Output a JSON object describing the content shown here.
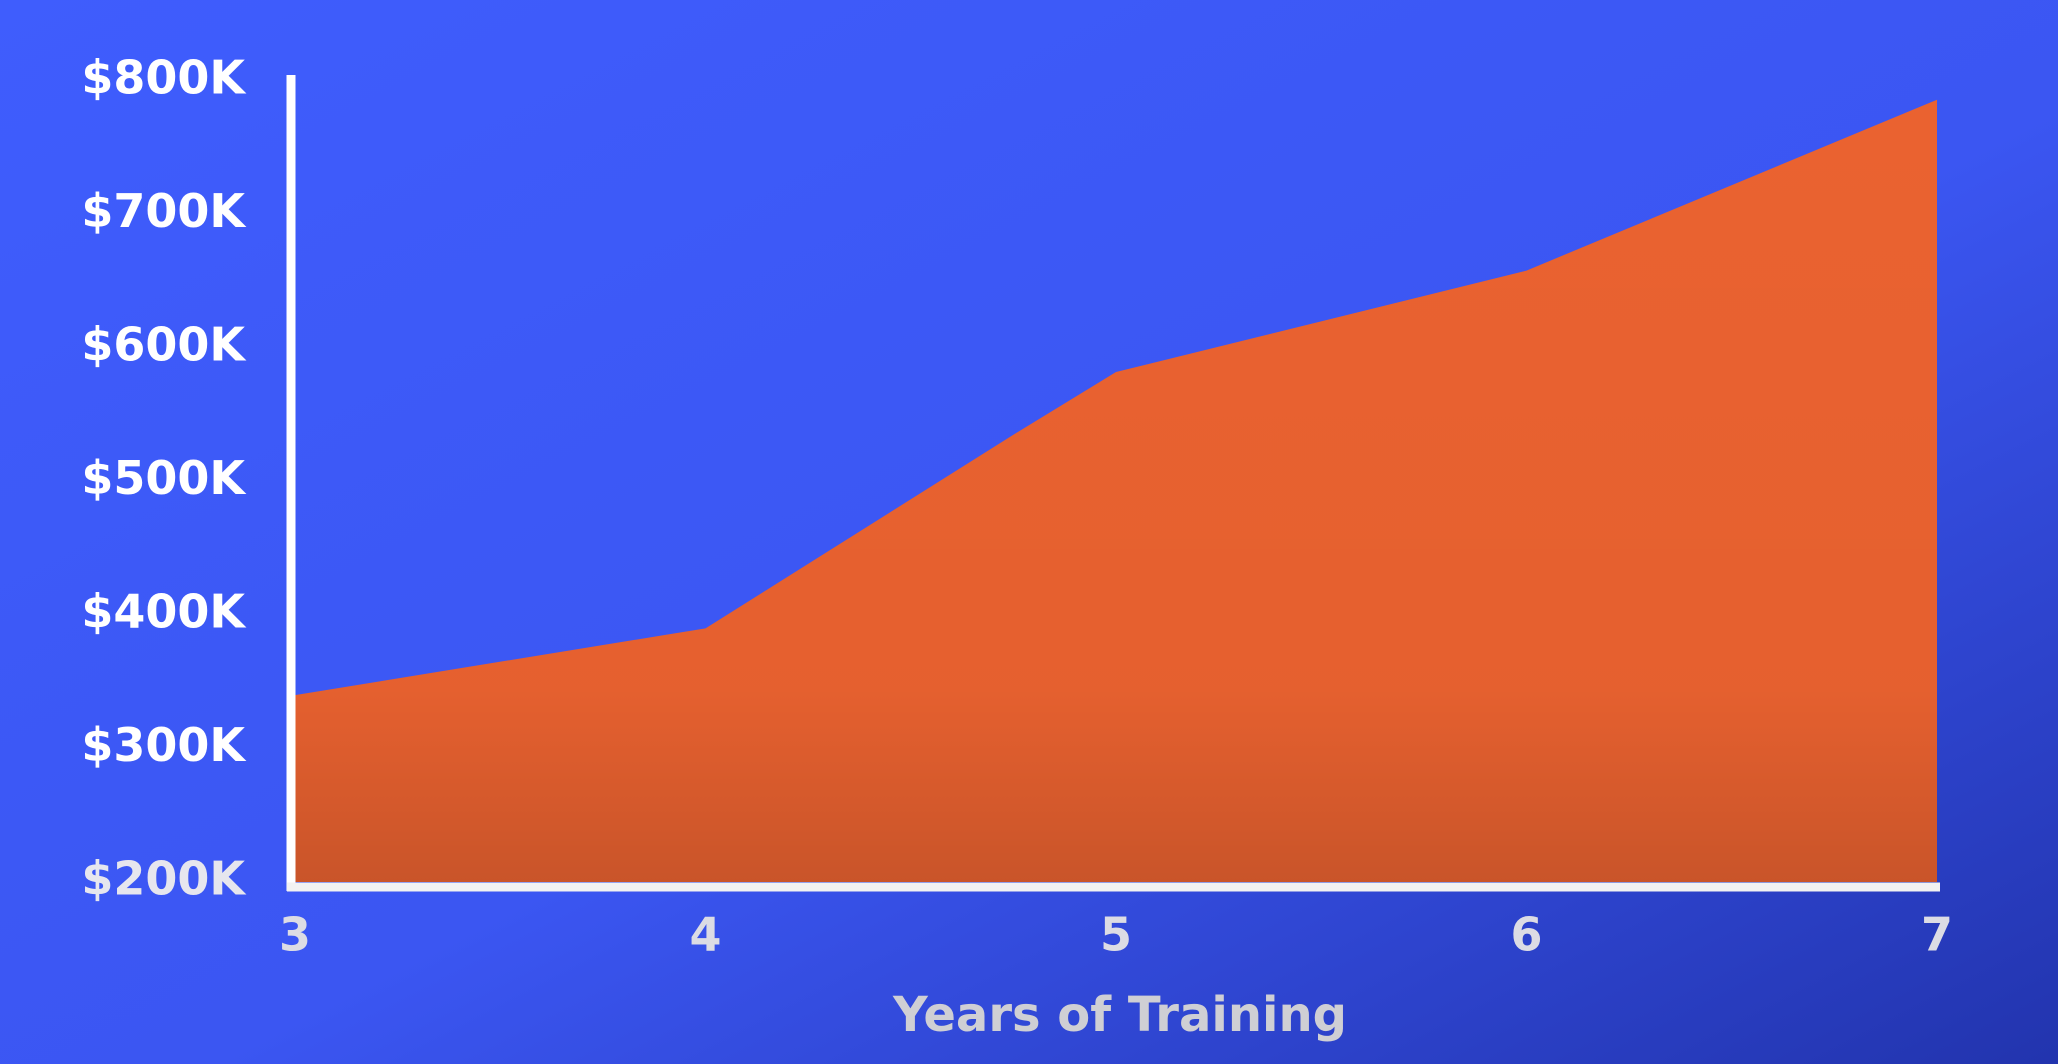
{
  "chart_data": {
    "type": "area",
    "x": [
      3,
      4,
      4.75,
      5,
      6,
      7
    ],
    "values": [
      340000,
      390000,
      535000,
      582000,
      658000,
      786000
    ],
    "color": "#ea6230",
    "xlabel": "Years of Training",
    "xlim": [
      3,
      7
    ],
    "xticks": [
      3,
      4,
      5,
      6,
      7
    ],
    "ylim": [
      200000,
      800000
    ],
    "yticks": [
      {
        "value": 200000,
        "label": "$200K"
      },
      {
        "value": 300000,
        "label": "$300K"
      },
      {
        "value": 400000,
        "label": "$400K"
      },
      {
        "value": 500000,
        "label": "$500K"
      },
      {
        "value": 600000,
        "label": "$600K"
      },
      {
        "value": 700000,
        "label": "$700K"
      },
      {
        "value": 800000,
        "label": "$800K"
      }
    ],
    "grid": false
  }
}
